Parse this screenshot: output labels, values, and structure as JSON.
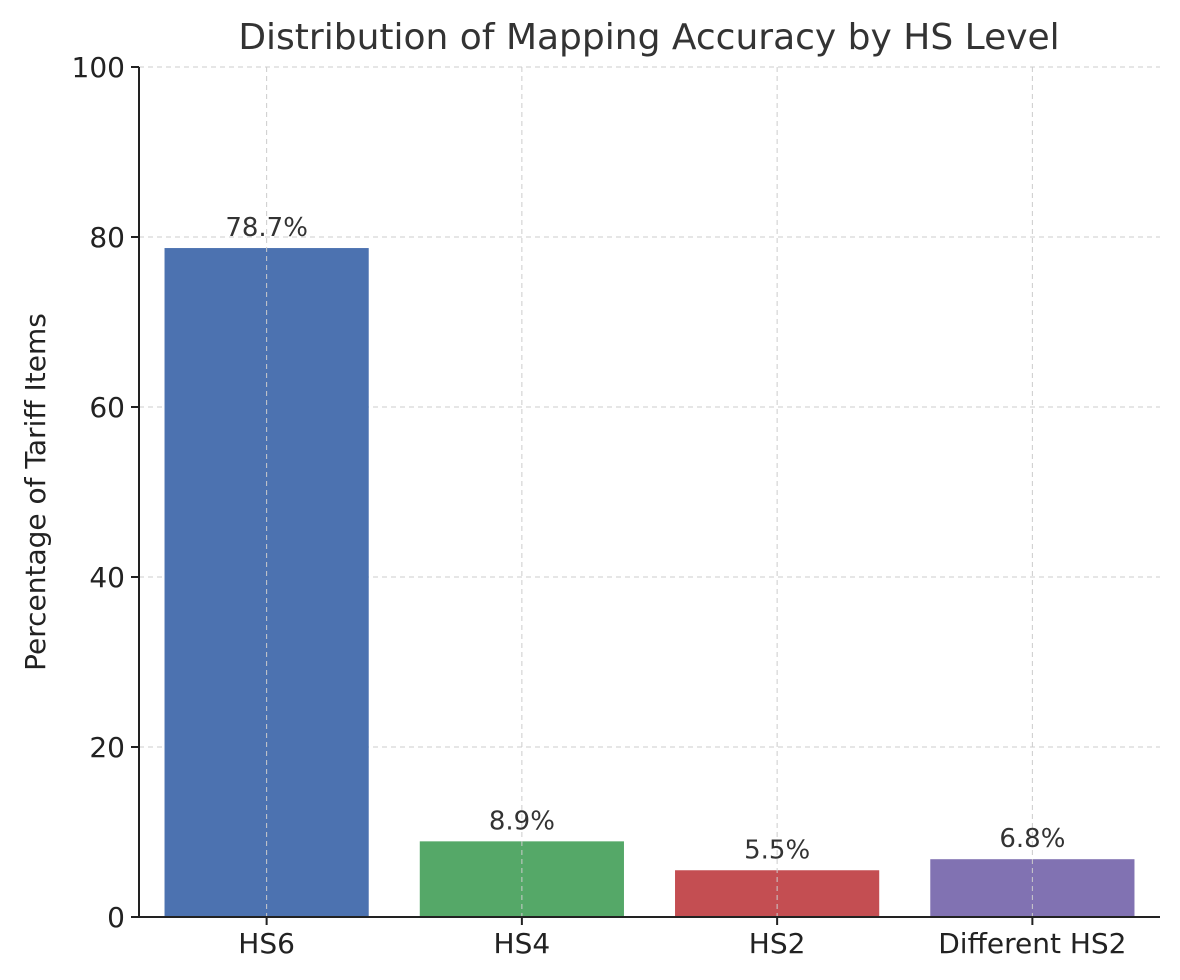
{
  "chart_data": {
    "type": "bar",
    "title": "Distribution of Mapping Accuracy by HS Level",
    "xlabel": "",
    "ylabel": "Percentage of Tariff Items",
    "categories": [
      "HS6",
      "HS4",
      "HS2",
      "Different HS2"
    ],
    "values": [
      78.7,
      8.9,
      5.5,
      6.8
    ],
    "data_labels": [
      "78.7%",
      "8.9%",
      "5.5%",
      "6.8%"
    ],
    "colors": [
      "#4c72b0",
      "#55a868",
      "#c44e52",
      "#8172b2"
    ],
    "ylim": [
      0,
      100
    ],
    "yticks": [
      0,
      20,
      40,
      60,
      80,
      100
    ],
    "grid": true,
    "legend": "none"
  }
}
